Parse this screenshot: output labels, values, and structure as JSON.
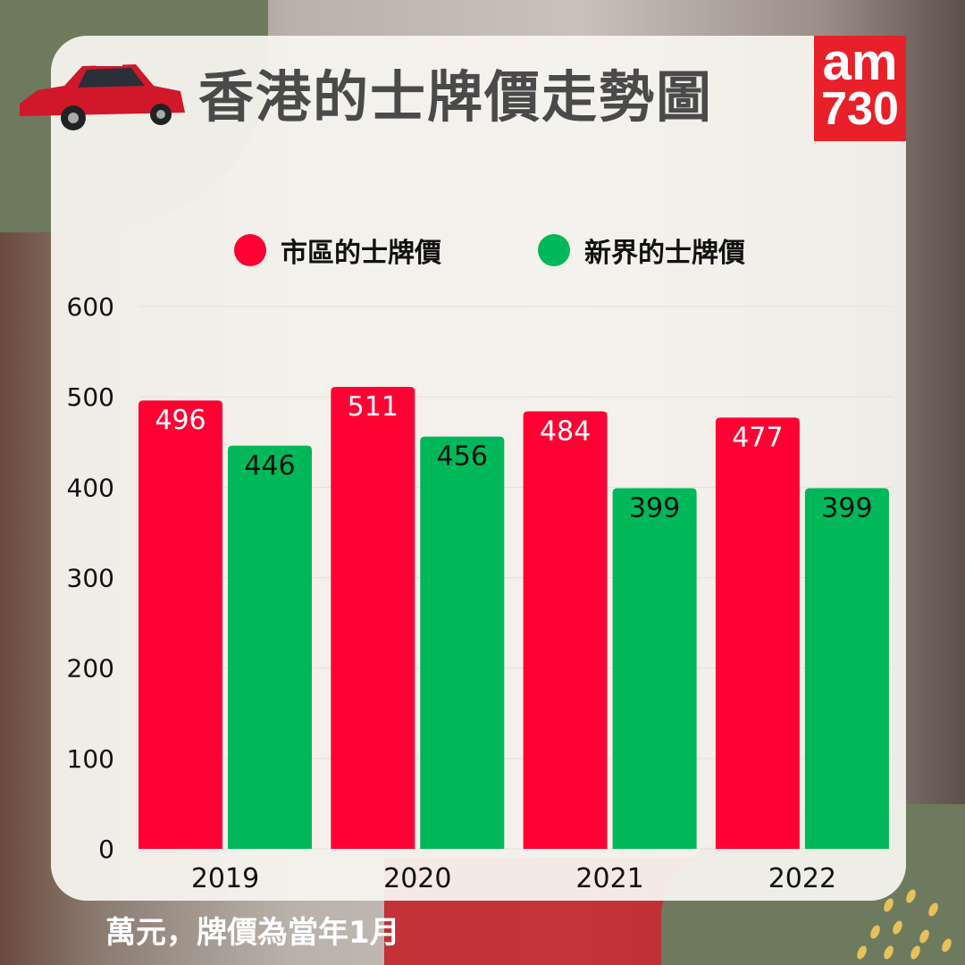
{
  "title": "香港的士牌價走勢圖",
  "logo": {
    "line1": "am",
    "line2": "730"
  },
  "footnote": "萬元，牌價為當年1月",
  "colors": {
    "urban": "#ff0033",
    "nt": "#00b859",
    "title": "#4a4a4a"
  },
  "chart_data": {
    "type": "bar",
    "title": "香港的士牌價走勢圖",
    "categories": [
      "2019",
      "2020",
      "2021",
      "2022"
    ],
    "series": [
      {
        "name": "市區的士牌價",
        "color": "#ff0033",
        "values": [
          496,
          511,
          484,
          477
        ]
      },
      {
        "name": "新界的士牌價",
        "color": "#00b859",
        "values": [
          446,
          456,
          399,
          399
        ]
      }
    ],
    "ylim": [
      0,
      600
    ],
    "yticks": [
      "0",
      "100",
      "200",
      "300",
      "400",
      "500",
      "600"
    ],
    "ylabel": "",
    "xlabel": "",
    "grid": true,
    "legend": "top",
    "data_labels": true
  }
}
